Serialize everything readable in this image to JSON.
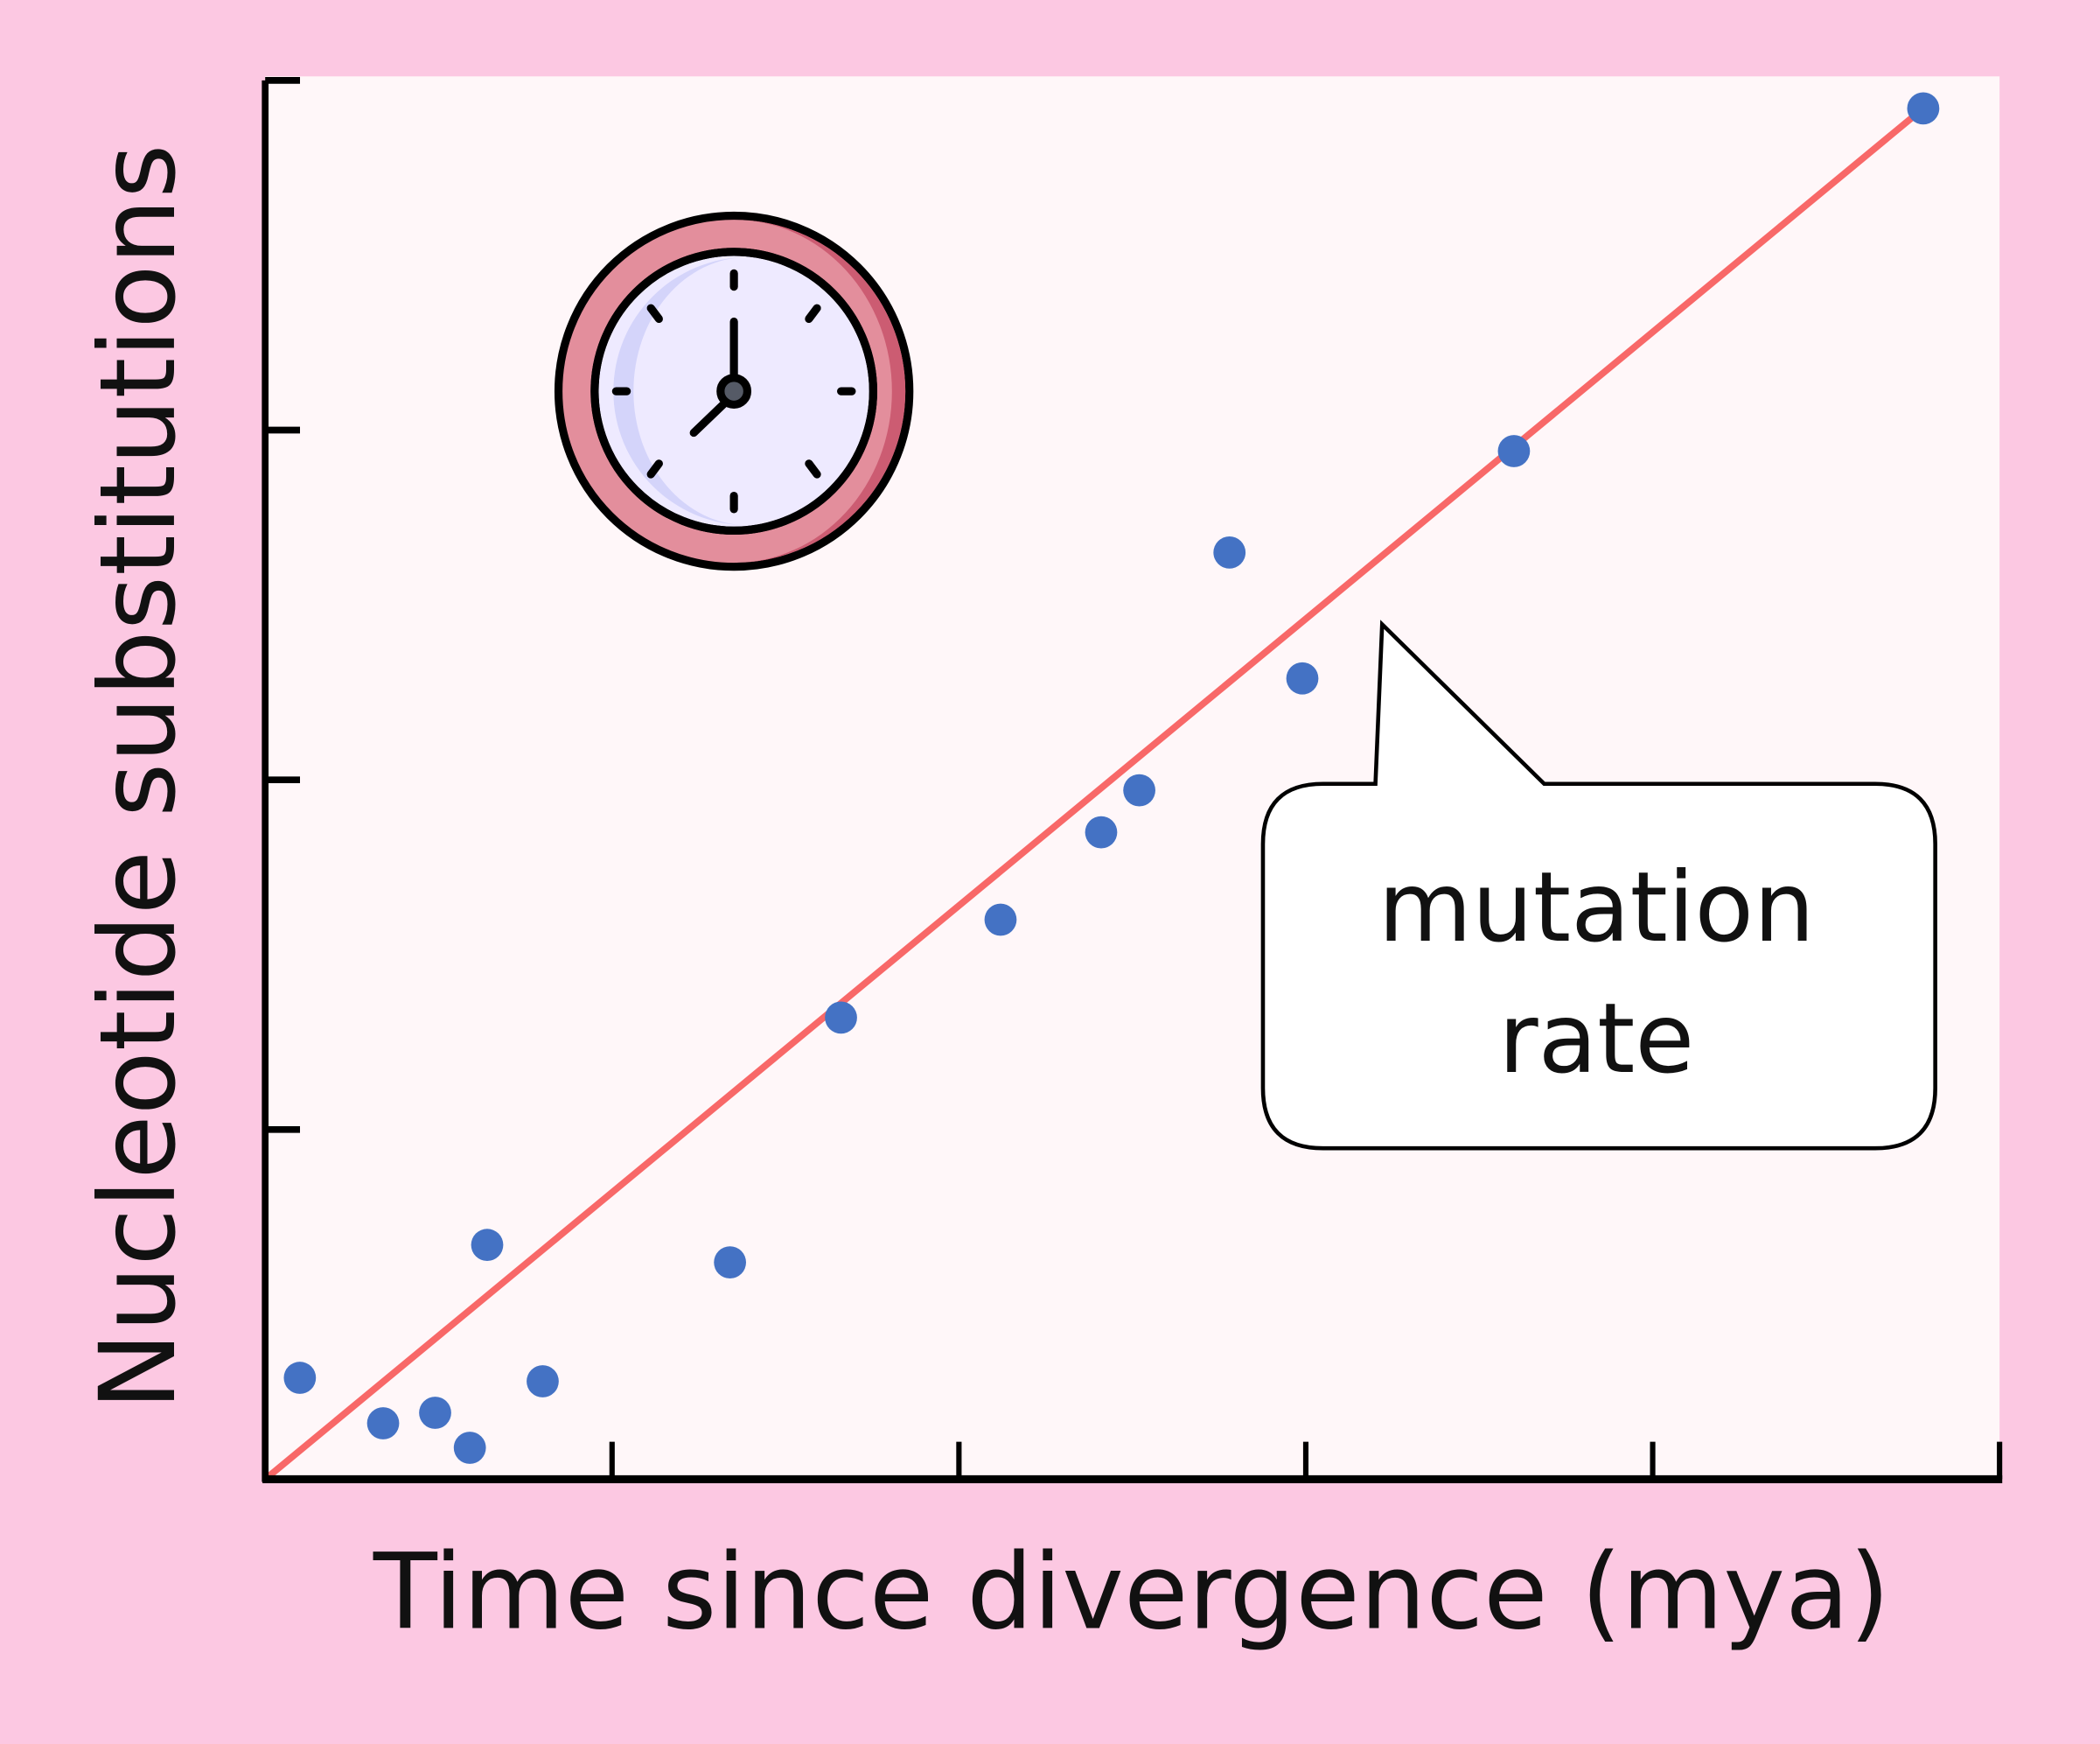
{
  "chart_data": {
    "type": "scatter",
    "title": "",
    "xlabel": "Time since divergence (mya)",
    "ylabel": "Nucleotide substitutions",
    "xlim": [
      0,
      5
    ],
    "ylim": [
      0,
      4
    ],
    "x_ticks": 5,
    "y_ticks": 4,
    "tick_labels_shown": false,
    "grid": false,
    "points": [
      {
        "x": 0.1,
        "y": 0.29
      },
      {
        "x": 0.34,
        "y": 0.16
      },
      {
        "x": 0.49,
        "y": 0.19
      },
      {
        "x": 0.59,
        "y": 0.09
      },
      {
        "x": 0.64,
        "y": 0.67
      },
      {
        "x": 0.8,
        "y": 0.28
      },
      {
        "x": 1.34,
        "y": 0.62
      },
      {
        "x": 1.66,
        "y": 1.32
      },
      {
        "x": 2.12,
        "y": 1.6
      },
      {
        "x": 2.41,
        "y": 1.85
      },
      {
        "x": 2.52,
        "y": 1.97
      },
      {
        "x": 2.78,
        "y": 2.65
      },
      {
        "x": 2.99,
        "y": 2.29
      },
      {
        "x": 3.6,
        "y": 2.94
      },
      {
        "x": 4.78,
        "y": 3.92
      }
    ],
    "trend_line": {
      "x": [
        0,
        4.78
      ],
      "y": [
        0,
        3.92
      ]
    },
    "annotation": {
      "line1": "mutation",
      "line2": "rate"
    },
    "colors": {
      "background": "#fcc8e2",
      "plot_background": "#fff7f9",
      "points": "#4472c4",
      "trend_line": "#f86868",
      "clock_rim": "#e38e9c",
      "clock_rim_shade": "#cc5c72",
      "clock_face": "#eeeaff",
      "clock_face_shade": "#d4d4fa"
    },
    "icon": "clock-icon"
  }
}
